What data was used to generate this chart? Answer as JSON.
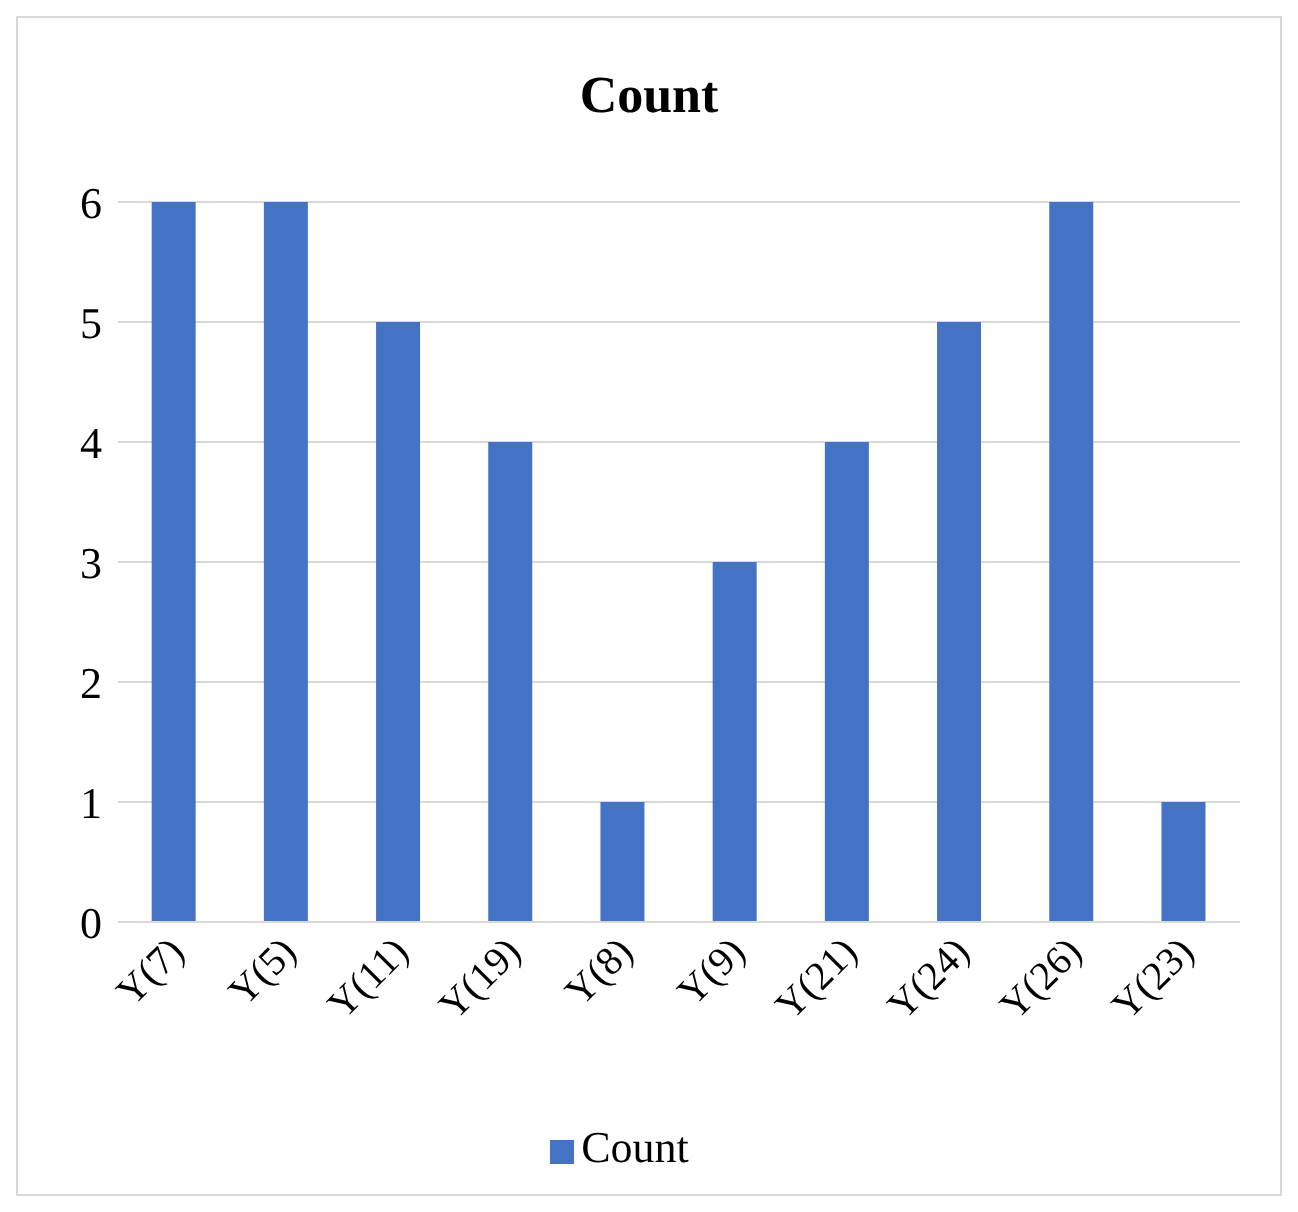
{
  "chart_data": {
    "type": "bar",
    "title": "Count",
    "categories": [
      "Y(7)",
      "Y(5)",
      "Y(11)",
      "Y(19)",
      "Y(8)",
      "Y(9)",
      "Y(21)",
      "Y(24)",
      "Y(26)",
      "Y(23)"
    ],
    "series": [
      {
        "name": "Count",
        "color": "#4472c4",
        "values": [
          6,
          6,
          5,
          4,
          1,
          3,
          4,
          5,
          6,
          1
        ]
      }
    ],
    "ylim": [
      0,
      6
    ],
    "yticks": [
      0,
      1,
      2,
      3,
      4,
      5,
      6
    ],
    "grid": "y",
    "legend": "bottom"
  }
}
